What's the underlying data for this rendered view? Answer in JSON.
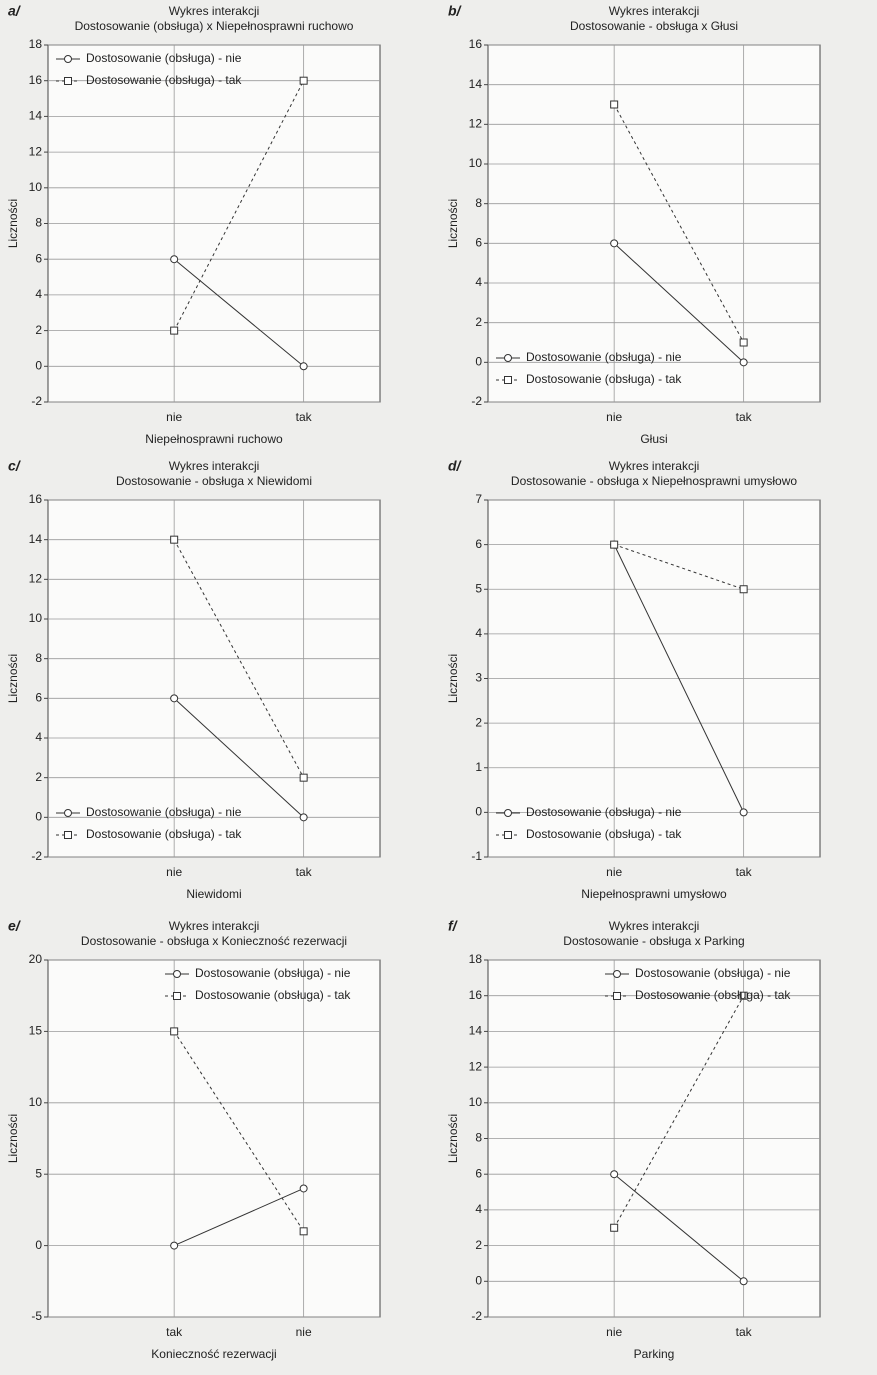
{
  "chart_data": [
    {
      "type": "line",
      "label": "a/",
      "title": "Wykres interakcji",
      "subtitle": "Dostosowanie (obsługa) x Niepełnosprawni ruchowo",
      "xlabel": "Niepełnosprawni ruchowo",
      "ylabel": "Liczności",
      "categories": [
        "nie",
        "tak"
      ],
      "series": [
        {
          "name": "Dostosowanie (obsługa) - nie",
          "color": "#333333",
          "style": "solid",
          "marker": "circle",
          "values": [
            6,
            0
          ]
        },
        {
          "name": "Dostosowanie (obsługa) - tak",
          "color": "#333333",
          "style": "dashed",
          "marker": "square",
          "values": [
            2,
            16
          ]
        }
      ],
      "ylim": [
        -2,
        18
      ],
      "yticks": [
        -2,
        0,
        2,
        4,
        6,
        8,
        10,
        12,
        14,
        16,
        18
      ],
      "grid": true,
      "legend": "upper left"
    },
    {
      "type": "line",
      "label": "b/",
      "title": "Wykres interakcji",
      "subtitle": "Dostosowanie - obsługa x Głusi",
      "xlabel": "Głusi",
      "ylabel": "Liczności",
      "categories": [
        "nie",
        "tak"
      ],
      "series": [
        {
          "name": "Dostosowanie (obsługa) - nie",
          "color": "#333333",
          "style": "solid",
          "marker": "circle",
          "values": [
            6,
            0
          ]
        },
        {
          "name": "Dostosowanie (obsługa) - tak",
          "color": "#333333",
          "style": "dashed",
          "marker": "square",
          "values": [
            13,
            1
          ]
        }
      ],
      "ylim": [
        -2,
        16
      ],
      "yticks": [
        -2,
        0,
        2,
        4,
        6,
        8,
        10,
        12,
        14,
        16
      ],
      "grid": true,
      "legend": "lower left"
    },
    {
      "type": "line",
      "label": "c/",
      "title": "Wykres interakcji",
      "subtitle": "Dostosowanie - obsługa x Niewidomi",
      "xlabel": "Niewidomi",
      "ylabel": "Liczności",
      "categories": [
        "nie",
        "tak"
      ],
      "series": [
        {
          "name": "Dostosowanie (obsługa) - nie",
          "color": "#333333",
          "style": "solid",
          "marker": "circle",
          "values": [
            6,
            0
          ]
        },
        {
          "name": "Dostosowanie (obsługa) - tak",
          "color": "#333333",
          "style": "dashed",
          "marker": "square",
          "values": [
            14,
            2
          ]
        }
      ],
      "ylim": [
        -2,
        16
      ],
      "yticks": [
        -2,
        0,
        2,
        4,
        6,
        8,
        10,
        12,
        14,
        16
      ],
      "grid": true,
      "legend": "lower left"
    },
    {
      "type": "line",
      "label": "d/",
      "title": "Wykres interakcji",
      "subtitle": "Dostosowanie - obsługa x Niepełnosprawni umysłowo",
      "xlabel": "Niepełnosprawni umysłowo",
      "ylabel": "Liczności",
      "categories": [
        "nie",
        "tak"
      ],
      "series": [
        {
          "name": "Dostosowanie (obsługa) - nie",
          "color": "#333333",
          "style": "solid",
          "marker": "circle",
          "values": [
            6,
            0
          ]
        },
        {
          "name": "Dostosowanie (obsługa) - tak",
          "color": "#333333",
          "style": "dashed",
          "marker": "square",
          "values": [
            6,
            5
          ]
        }
      ],
      "ylim": [
        -1,
        7
      ],
      "yticks": [
        -1,
        0,
        1,
        2,
        3,
        4,
        5,
        6,
        7
      ],
      "grid": true,
      "legend": "lower left"
    },
    {
      "type": "line",
      "label": "e/",
      "title": "Wykres interakcji",
      "subtitle": "Dostosowanie - obsługa x Konieczność rezerwacji",
      "xlabel": "Konieczność rezerwacji",
      "ylabel": "Liczności",
      "categories": [
        "tak",
        "nie"
      ],
      "series": [
        {
          "name": "Dostosowanie (obsługa) - nie",
          "color": "#333333",
          "style": "solid",
          "marker": "circle",
          "values": [
            0,
            4
          ]
        },
        {
          "name": "Dostosowanie (obsługa) - tak",
          "color": "#333333",
          "style": "dashed",
          "marker": "square",
          "values": [
            15,
            1
          ]
        }
      ],
      "ylim": [
        -5,
        20
      ],
      "yticks": [
        -5,
        0,
        5,
        10,
        15,
        20
      ],
      "grid": true,
      "legend": "upper right"
    },
    {
      "type": "line",
      "label": "f/",
      "title": "Wykres interakcji",
      "subtitle": "Dostosowanie - obsługa x Parking",
      "xlabel": "Parking",
      "ylabel": "Liczności",
      "categories": [
        "nie",
        "tak"
      ],
      "series": [
        {
          "name": "Dostosowanie (obsługa) - nie",
          "color": "#333333",
          "style": "solid",
          "marker": "circle",
          "values": [
            6,
            0
          ]
        },
        {
          "name": "Dostosowanie (obsługa) - tak",
          "color": "#333333",
          "style": "dashed",
          "marker": "square",
          "values": [
            3,
            16
          ]
        }
      ],
      "ylim": [
        -2,
        18
      ],
      "yticks": [
        -2,
        0,
        2,
        4,
        6,
        8,
        10,
        12,
        14,
        16,
        18
      ],
      "grid": true,
      "legend": "upper right"
    }
  ]
}
